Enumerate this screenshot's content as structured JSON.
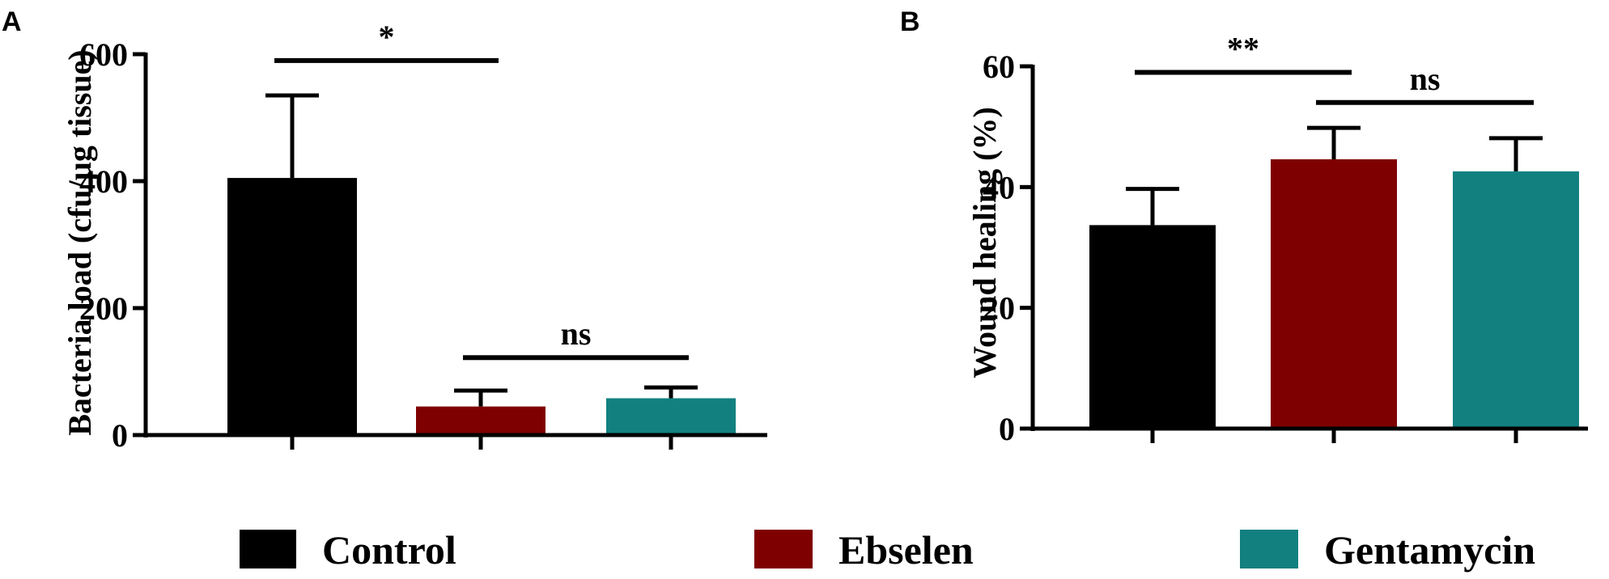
{
  "chart_data": [
    {
      "type": "bar",
      "panel_label": "A",
      "categories": [
        "Control",
        "Ebselen",
        "Gentamycin"
      ],
      "values": [
        405,
        45,
        58
      ],
      "errors": [
        130,
        25,
        17
      ],
      "ylabel": "Bacteria load (cfu/µg tissue)",
      "ylim": [
        0,
        600
      ],
      "yticks": [
        "0",
        "200",
        "400",
        "600"
      ],
      "significance": [
        {
          "from": 0,
          "to": 1,
          "label": "*",
          "value": 590
        },
        {
          "from": 1,
          "to": 2,
          "label": "ns",
          "value": 122
        }
      ]
    },
    {
      "type": "bar",
      "panel_label": "B",
      "categories": [
        "Control",
        "Ebselen",
        "Gentamycin"
      ],
      "values": [
        33.7,
        44.6,
        42.6
      ],
      "errors": [
        6.0,
        5.2,
        5.5
      ],
      "ylabel": "Wound healing (%)",
      "ylim": [
        0,
        60
      ],
      "yticks": [
        "0",
        "20",
        "40",
        "60"
      ],
      "significance": [
        {
          "from": 0,
          "to": 1,
          "label": "**",
          "value": 59
        },
        {
          "from": 1,
          "to": 2,
          "label": "ns",
          "value": 54
        }
      ]
    }
  ],
  "legend": {
    "items": [
      {
        "label": "Control",
        "color": "#000000"
      },
      {
        "label": "Ebselen",
        "color": "#7f0000"
      },
      {
        "label": "Gentamycin",
        "color": "#138080"
      }
    ]
  },
  "colors": [
    "#000000",
    "#7f0000",
    "#138080"
  ]
}
